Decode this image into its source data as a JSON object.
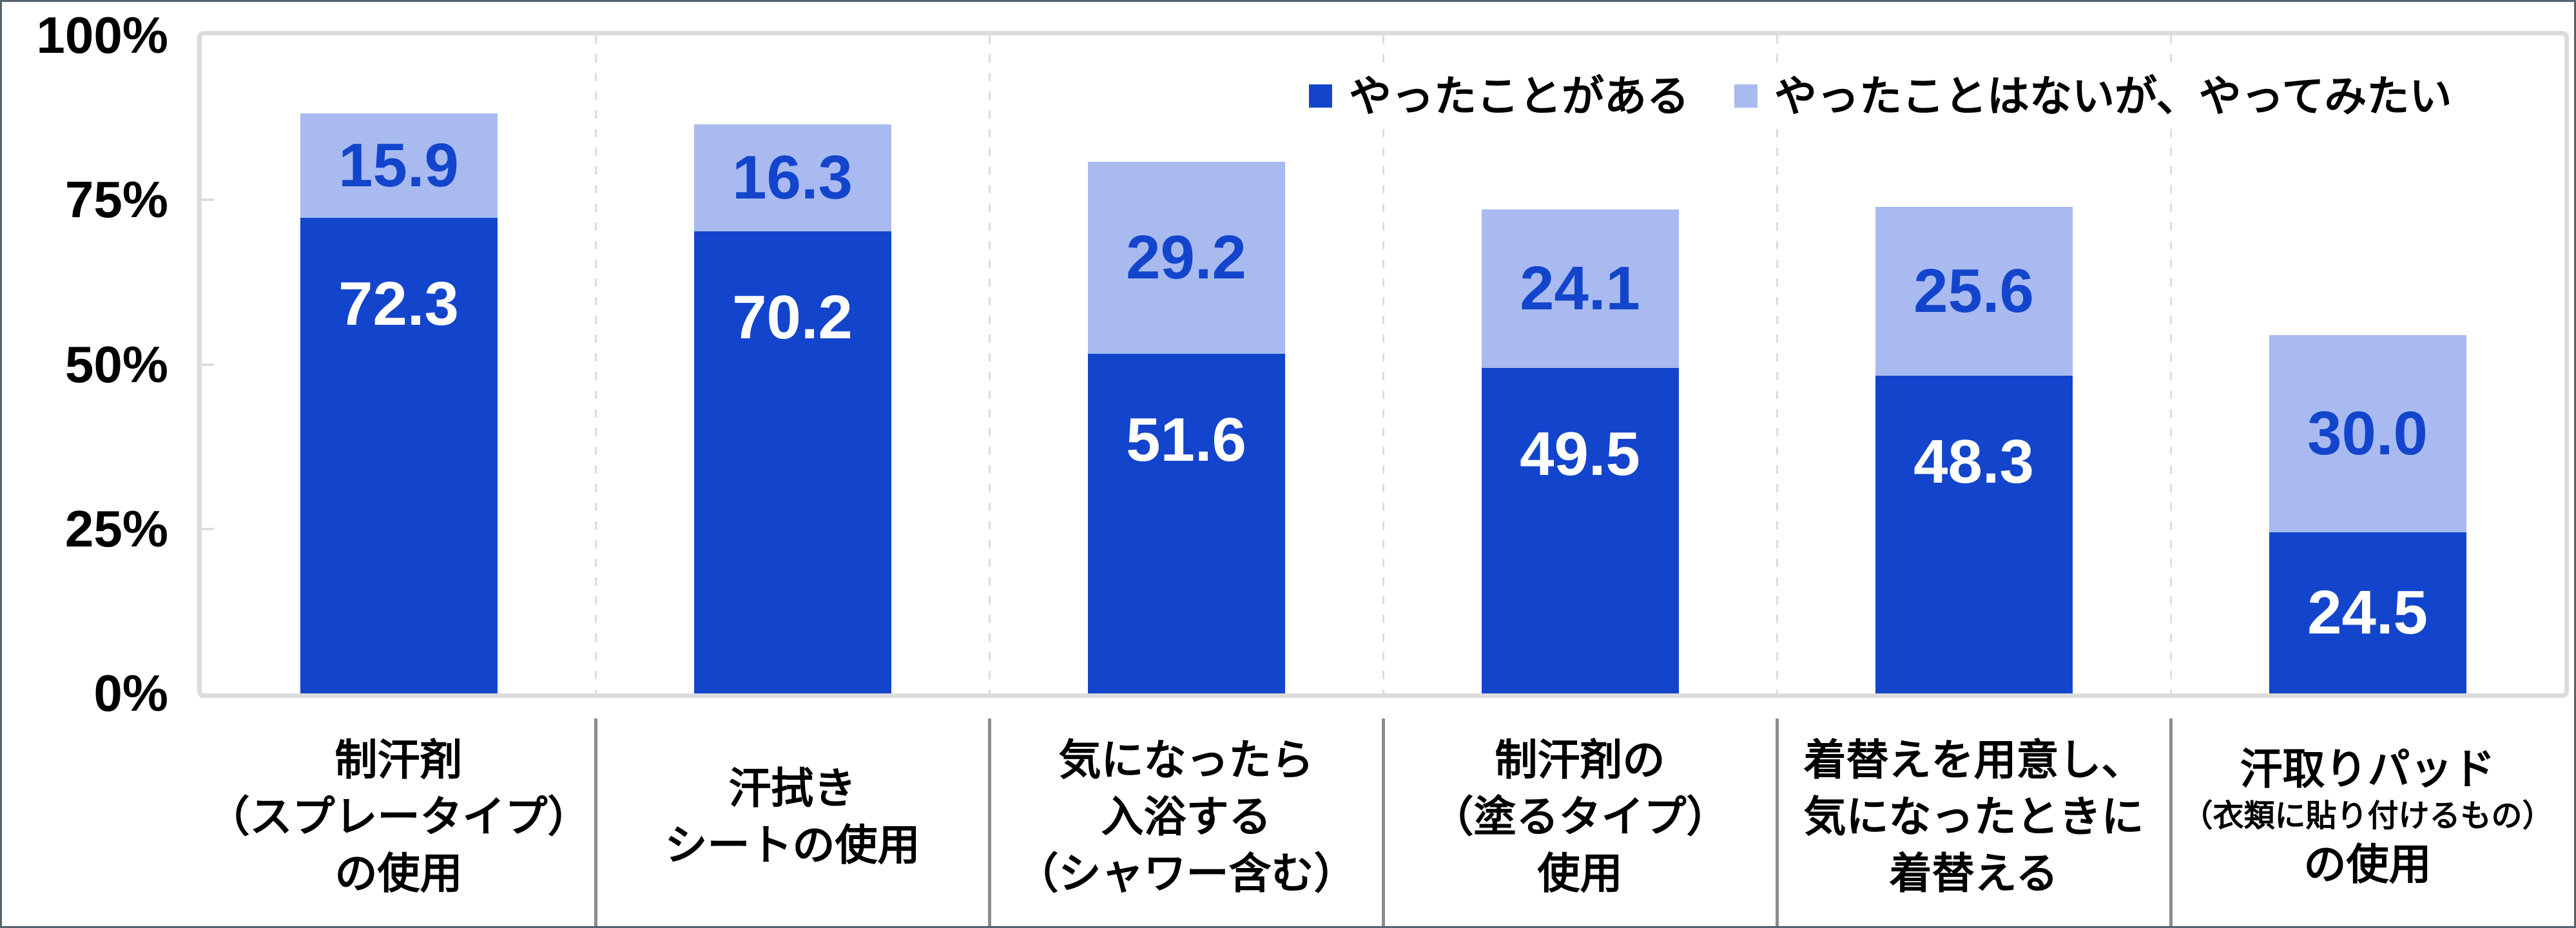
{
  "chart_data": {
    "type": "bar",
    "stacked": true,
    "orientation": "vertical",
    "categories": [
      [
        "制汗剤",
        "（スプレータイプ）",
        "の使用"
      ],
      [
        "汗拭き",
        "シートの使用"
      ],
      [
        "気になったら",
        "入浴する",
        "（シャワー含む）"
      ],
      [
        "制汗剤の",
        "（塗るタイプ）",
        "使用"
      ],
      [
        "着替えを用意し、",
        "気になったときに",
        "着替える"
      ],
      [
        "汗取りパッド",
        "（衣類に貼り付けるもの）",
        "の使用"
      ]
    ],
    "category_small_lines": [
      [],
      [],
      [],
      [],
      [],
      [
        1
      ]
    ],
    "series": [
      {
        "name": "やったことがある",
        "color": "#1345CC",
        "label_color": "#ffffff",
        "values": [
          72.3,
          70.2,
          51.6,
          49.5,
          48.3,
          24.5
        ]
      },
      {
        "name": "やったことはないが、やってみたい",
        "color": "#A8BAF0",
        "label_color": "#1345CC",
        "values": [
          15.9,
          16.3,
          29.2,
          24.1,
          25.6,
          30.0
        ]
      }
    ],
    "value_decimals": 1,
    "y_axis": {
      "ticks": [
        "100%",
        "75%",
        "50%",
        "25%",
        "0%"
      ],
      "tick_values": [
        100,
        75,
        50,
        25,
        0
      ],
      "ylim": [
        0,
        100
      ]
    },
    "legend_position": "top-right",
    "grid": "dashed vertical category separators"
  },
  "styles": {
    "plot_border_color": "#dcdcdc",
    "dashed_separator_color": "#dcdcdc",
    "tick_color": "#dedede",
    "label_divider_color": "#8c8c8c",
    "frame_border_color": "#55646e",
    "text_color": "#000000",
    "background": "#ffffff"
  }
}
